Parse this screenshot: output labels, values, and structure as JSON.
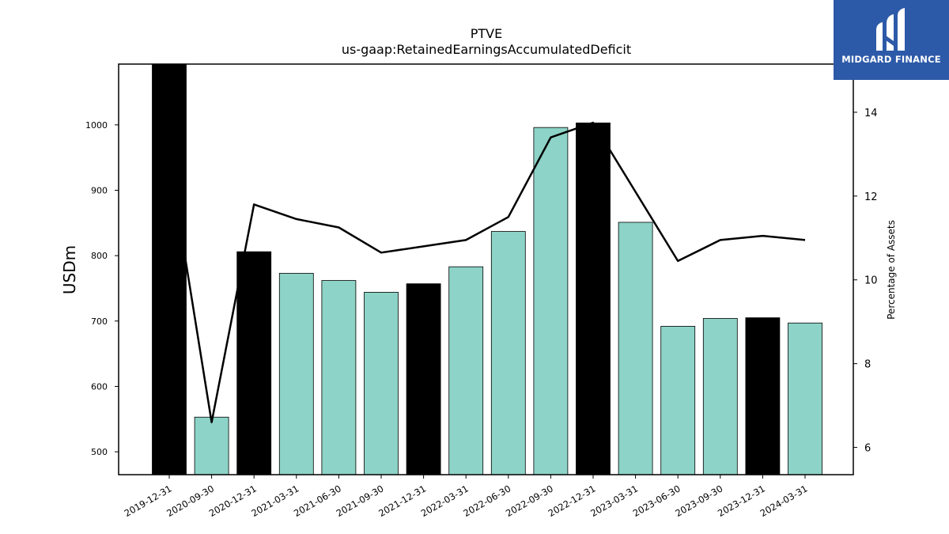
{
  "brand": {
    "logo_text": "MIDGARD FINANCE",
    "color": "#2d5aa8"
  },
  "chart_data": {
    "type": "bar",
    "title": "PTVE",
    "subtitle": "us-gaap:RetainedEarningsAccumulatedDeficit",
    "ylabel": "USDm",
    "y2label": "Percentage of Assets",
    "ylim": [
      465,
      1093
    ],
    "y2lim": [
      5.35,
      15.15
    ],
    "yticks": [
      500,
      600,
      700,
      800,
      900,
      1000
    ],
    "y2ticks": [
      6,
      8,
      10,
      12,
      14
    ],
    "categories": [
      "2019-12-31",
      "2020-09-30",
      "2020-12-31",
      "2021-03-31",
      "2021-06-30",
      "2021-09-30",
      "2021-12-31",
      "2022-03-31",
      "2022-06-30",
      "2022-09-30",
      "2022-12-31",
      "2023-03-31",
      "2023-06-30",
      "2023-09-30",
      "2023-12-31",
      "2024-03-31"
    ],
    "series": [
      {
        "type": "bar",
        "values": [
          1093,
          553,
          806,
          773,
          762,
          744,
          757,
          783,
          837,
          996,
          1003,
          851,
          692,
          704,
          705,
          697
        ],
        "highlight": [
          true,
          false,
          true,
          false,
          false,
          false,
          true,
          false,
          false,
          false,
          true,
          false,
          false,
          false,
          true,
          false
        ]
      },
      {
        "type": "line",
        "axis": "right",
        "values": [
          12.9,
          6.6,
          11.8,
          11.45,
          11.25,
          10.65,
          10.8,
          10.95,
          11.5,
          13.4,
          13.75,
          12.1,
          10.45,
          10.95,
          11.05,
          10.95
        ]
      }
    ],
    "colors": {
      "bar": "#8dd3c7",
      "bar_highlight": "#000000",
      "line": "#000000"
    },
    "grid": false,
    "legend": "none"
  }
}
